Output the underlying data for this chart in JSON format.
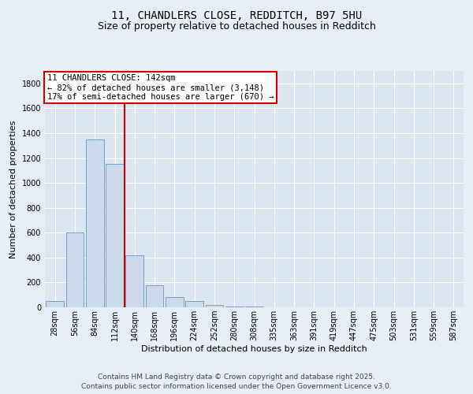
{
  "title1": "11, CHANDLERS CLOSE, REDDITCH, B97 5HU",
  "title2": "Size of property relative to detached houses in Redditch",
  "xlabel": "Distribution of detached houses by size in Redditch",
  "ylabel": "Number of detached properties",
  "footer1": "Contains HM Land Registry data © Crown copyright and database right 2025.",
  "footer2": "Contains public sector information licensed under the Open Government Licence v3.0.",
  "annotation_line1": "11 CHANDLERS CLOSE: 142sqm",
  "annotation_line2": "← 82% of detached houses are smaller (3,148)",
  "annotation_line3": "17% of semi-detached houses are larger (670) →",
  "bin_labels": [
    "28sqm",
    "56sqm",
    "84sqm",
    "112sqm",
    "140sqm",
    "168sqm",
    "196sqm",
    "224sqm",
    "252sqm",
    "280sqm",
    "308sqm",
    "335sqm",
    "363sqm",
    "391sqm",
    "419sqm",
    "447sqm",
    "475sqm",
    "503sqm",
    "531sqm",
    "559sqm",
    "587sqm"
  ],
  "bar_values": [
    50,
    600,
    1350,
    1150,
    420,
    180,
    80,
    50,
    20,
    5,
    5,
    0,
    0,
    0,
    0,
    0,
    0,
    0,
    0,
    0,
    0
  ],
  "bar_color": "#ccdaeb",
  "bar_edge_color": "#7aa0c4",
  "vline_color": "#cc0000",
  "vline_x": 3.5,
  "ylim": [
    0,
    1900
  ],
  "yticks": [
    0,
    200,
    400,
    600,
    800,
    1000,
    1200,
    1400,
    1600,
    1800
  ],
  "bg_color": "#e8eef5",
  "plot_bg_color": "#dce6f0",
  "annotation_box_color": "#ffffff",
  "annotation_box_edge": "#cc0000",
  "title_fontsize": 10,
  "subtitle_fontsize": 9,
  "axis_label_fontsize": 8,
  "tick_fontsize": 7,
  "annotation_fontsize": 7.5,
  "footer_fontsize": 6.5
}
